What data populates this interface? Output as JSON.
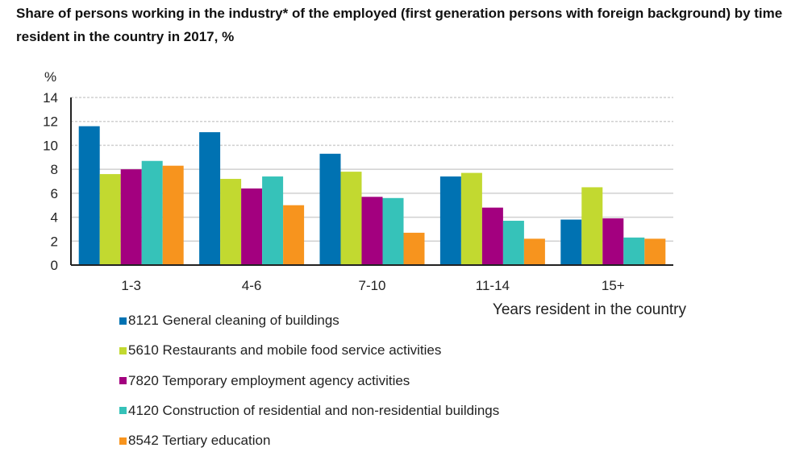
{
  "title": "Share of persons working in the industry* of the employed (first generation persons with foreign background) by time resident in the country in 2017, %",
  "chart_data": {
    "type": "bar",
    "title": "Share of persons working in the industry* of the employed (first generation persons with foreign background) by time resident in the country in 2017, %",
    "ylabel": "%",
    "xlabel": "Years resident in the country",
    "ylim": [
      0,
      14
    ],
    "yticks": [
      "0",
      "2",
      "4",
      "6",
      "8",
      "10",
      "12",
      "14"
    ],
    "grid": true,
    "legend_position": "bottom",
    "categories": [
      "1-3",
      "4-6",
      "7-10",
      "11-14",
      "15+"
    ],
    "series": [
      {
        "name": "8121 General cleaning of buildings",
        "color": "#0072B2",
        "values": [
          11.6,
          11.1,
          9.3,
          7.4,
          3.8
        ]
      },
      {
        "name": "5610 Restaurants and mobile food service activities",
        "color": "#C2D930",
        "values": [
          7.6,
          7.2,
          7.8,
          7.7,
          6.5
        ]
      },
      {
        "name": "7820 Temporary employment agency activities",
        "color": "#A3007F",
        "values": [
          8.0,
          6.4,
          5.7,
          4.8,
          3.9
        ]
      },
      {
        "name": "4120 Construction of residential and non-residential buildings",
        "color": "#36C2B9",
        "values": [
          8.7,
          7.4,
          5.6,
          3.7,
          2.3
        ]
      },
      {
        "name": "8542 Tertiary education",
        "color": "#F7941E",
        "values": [
          8.3,
          5.0,
          2.7,
          2.2,
          2.2
        ]
      }
    ]
  }
}
